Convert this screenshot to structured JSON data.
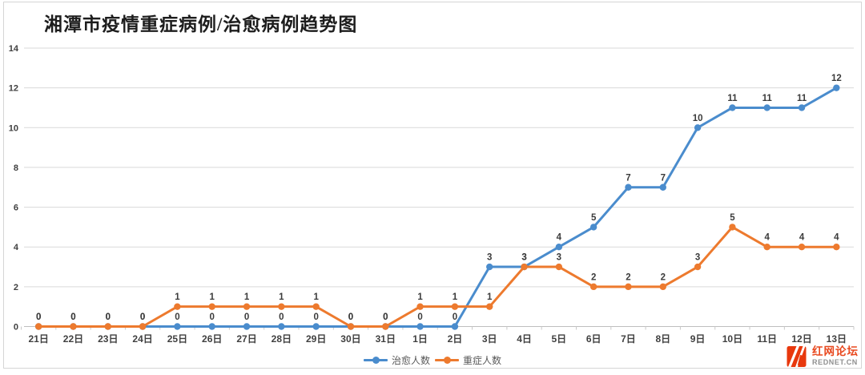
{
  "chart_data": {
    "type": "line",
    "title": "湘潭市疫情重症病例/治愈病例趋势图",
    "categories": [
      "21日",
      "22日",
      "23日",
      "24日",
      "25日",
      "26日",
      "27日",
      "28日",
      "29日",
      "30日",
      "31日",
      "1日",
      "2日",
      "3日",
      "4日",
      "5日",
      "6日",
      "7日",
      "8日",
      "9日",
      "10日",
      "11日",
      "12日",
      "13日"
    ],
    "series": [
      {
        "name": "治愈人数",
        "color": "#4a8ccd",
        "values": [
          0,
          0,
          0,
          0,
          0,
          0,
          0,
          0,
          0,
          0,
          0,
          0,
          0,
          3,
          3,
          4,
          5,
          7,
          7,
          10,
          11,
          11,
          11,
          12
        ]
      },
      {
        "name": "重症人数",
        "color": "#ed7a2e",
        "values": [
          0,
          0,
          0,
          0,
          1,
          1,
          1,
          1,
          1,
          0,
          0,
          1,
          1,
          1,
          3,
          3,
          2,
          2,
          2,
          3,
          5,
          4,
          4,
          4
        ]
      }
    ],
    "yticks": [
      0,
      2,
      4,
      6,
      8,
      10,
      12,
      14
    ],
    "ylim": [
      0,
      14
    ],
    "grid": true,
    "data_labels": true,
    "legend_position": "bottom-center",
    "colors": {
      "gridline": "#d9d9d9",
      "axis_line": "#bfbfbf",
      "label_text": "#404040"
    }
  },
  "watermark": {
    "site_name": "红网论坛",
    "site_url": "REDNET.CN",
    "logo_color": "#e8380d"
  }
}
